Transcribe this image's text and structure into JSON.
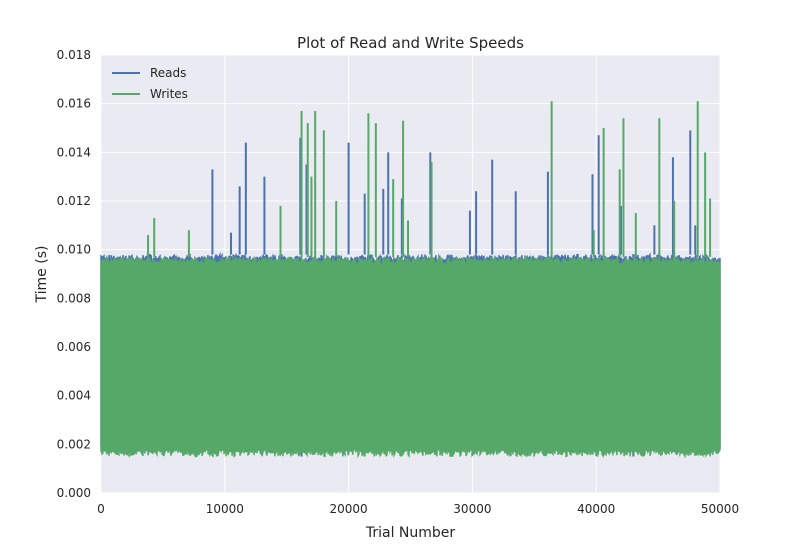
{
  "chart_data": {
    "type": "line",
    "title": "Plot of Read and Write Speeds",
    "xlabel": "Trial Number",
    "ylabel": "Time (s)",
    "xlim": [
      0,
      50000
    ],
    "ylim": [
      0.0,
      0.018
    ],
    "xticks": [
      0,
      10000,
      20000,
      30000,
      40000,
      50000
    ],
    "xtick_labels": [
      "0",
      "10000",
      "20000",
      "30000",
      "40000",
      "50000"
    ],
    "yticks": [
      0.0,
      0.002,
      0.004,
      0.006,
      0.008,
      0.01,
      0.012,
      0.014,
      0.016,
      0.018
    ],
    "ytick_labels": [
      "0.000",
      "0.002",
      "0.004",
      "0.006",
      "0.008",
      "0.010",
      "0.012",
      "0.014",
      "0.016",
      "0.018"
    ],
    "grid": true,
    "legend_position": "top-left",
    "background": "#eaeaf2",
    "n_points": 50000,
    "series": [
      {
        "name": "Reads",
        "color": "#4c72b0",
        "band_min": 0.0017,
        "band_max": 0.0098,
        "spikes": [
          {
            "x": 9000,
            "y": 0.0133
          },
          {
            "x": 10500,
            "y": 0.0107
          },
          {
            "x": 11200,
            "y": 0.0126
          },
          {
            "x": 11700,
            "y": 0.0144
          },
          {
            "x": 13200,
            "y": 0.013
          },
          {
            "x": 16100,
            "y": 0.0146
          },
          {
            "x": 16600,
            "y": 0.0135
          },
          {
            "x": 20000,
            "y": 0.0144
          },
          {
            "x": 21300,
            "y": 0.0123
          },
          {
            "x": 22800,
            "y": 0.0125
          },
          {
            "x": 23200,
            "y": 0.014
          },
          {
            "x": 24300,
            "y": 0.0121
          },
          {
            "x": 26600,
            "y": 0.014
          },
          {
            "x": 29800,
            "y": 0.0116
          },
          {
            "x": 30300,
            "y": 0.0124
          },
          {
            "x": 31600,
            "y": 0.0137
          },
          {
            "x": 33500,
            "y": 0.0124
          },
          {
            "x": 36100,
            "y": 0.0132
          },
          {
            "x": 39700,
            "y": 0.0131
          },
          {
            "x": 40200,
            "y": 0.0147
          },
          {
            "x": 42000,
            "y": 0.0118
          },
          {
            "x": 44700,
            "y": 0.011
          },
          {
            "x": 46200,
            "y": 0.0138
          },
          {
            "x": 47600,
            "y": 0.0149
          },
          {
            "x": 48000,
            "y": 0.011
          }
        ],
        "dips": [
          {
            "x": 16200,
            "y": 0.0023
          },
          {
            "x": 24500,
            "y": 0.0026
          },
          {
            "x": 43000,
            "y": 0.0023
          }
        ]
      },
      {
        "name": "Writes",
        "color": "#55a868",
        "band_min": 0.0015,
        "band_max": 0.0097,
        "spikes": [
          {
            "x": 3800,
            "y": 0.0106
          },
          {
            "x": 4300,
            "y": 0.0113
          },
          {
            "x": 7100,
            "y": 0.0108
          },
          {
            "x": 14500,
            "y": 0.0118
          },
          {
            "x": 16200,
            "y": 0.0157
          },
          {
            "x": 16700,
            "y": 0.0152
          },
          {
            "x": 17000,
            "y": 0.013
          },
          {
            "x": 17300,
            "y": 0.0157
          },
          {
            "x": 18000,
            "y": 0.0149
          },
          {
            "x": 19000,
            "y": 0.012
          },
          {
            "x": 21600,
            "y": 0.0156
          },
          {
            "x": 22200,
            "y": 0.0152
          },
          {
            "x": 23600,
            "y": 0.0129
          },
          {
            "x": 24400,
            "y": 0.0153
          },
          {
            "x": 24800,
            "y": 0.0112
          },
          {
            "x": 26700,
            "y": 0.0136
          },
          {
            "x": 36400,
            "y": 0.0161
          },
          {
            "x": 39800,
            "y": 0.0108
          },
          {
            "x": 40600,
            "y": 0.015
          },
          {
            "x": 41900,
            "y": 0.0133
          },
          {
            "x": 42200,
            "y": 0.0154
          },
          {
            "x": 43200,
            "y": 0.0115
          },
          {
            "x": 45100,
            "y": 0.0154
          },
          {
            "x": 46300,
            "y": 0.012
          },
          {
            "x": 48200,
            "y": 0.0161
          },
          {
            "x": 48800,
            "y": 0.014
          },
          {
            "x": 49200,
            "y": 0.0121
          }
        ],
        "dips": []
      }
    ]
  }
}
